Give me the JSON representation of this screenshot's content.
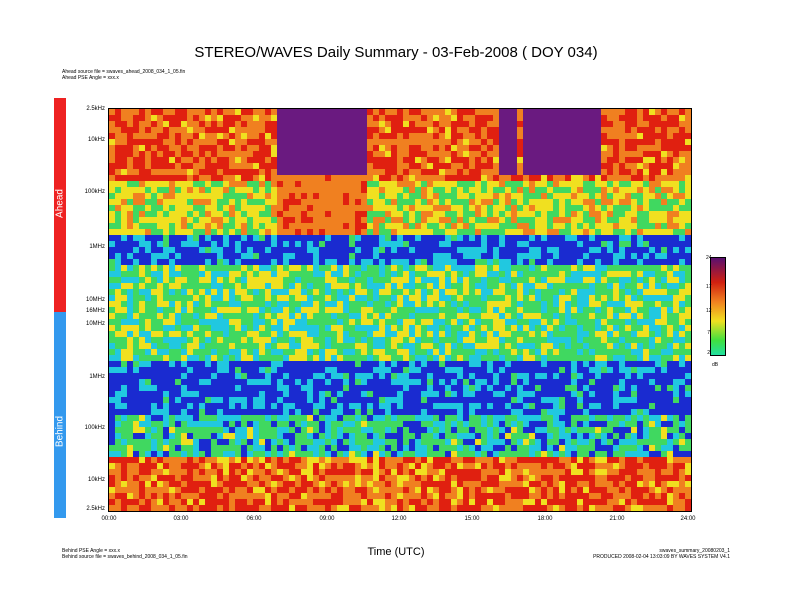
{
  "title": "STEREO/WAVES Daily Summary - 03-Feb-2008 ( DOY 034)",
  "ahead_info": {
    "source_file": "Ahead source file = swaves_ahead_2008_034_1_05.fin",
    "pse_angle": "Ahead PSE Angle = xxx.x"
  },
  "behind_info": {
    "pse_angle": "Behind PSE Angle = xxx.x",
    "source_file": "Behind source file = swaves_behind_2008_034_1_05.fin"
  },
  "footer_right": {
    "line1": "swaves_summary_20080203_1",
    "line2": "PRODUCED 2008-02-04 13:03:09 BY WAVES SYSTEM V4.1"
  },
  "bands": {
    "ahead": "Ahead",
    "behind": "Behind"
  },
  "chart_data": {
    "type": "heatmap",
    "title": "STEREO/WAVES Daily Summary - 03-Feb-2008 ( DOY 034)",
    "xlabel": "Time (UTC)",
    "x_ticks": [
      "00:00",
      "03:00",
      "06:00",
      "09:00",
      "12:00",
      "15:00",
      "18:00",
      "21:00",
      "24:00"
    ],
    "x_range_hours": [
      0,
      24
    ],
    "panels": [
      {
        "name": "Ahead",
        "y_scale": "log",
        "y_ticks": [
          "2.5kHz",
          "10kHz",
          "100kHz",
          "1MHz",
          "10MHz",
          "16MHz"
        ]
      },
      {
        "name": "Behind",
        "y_scale": "log",
        "y_ticks": [
          "10MHz",
          "1MHz",
          "100kHz",
          "10kHz",
          "2.5kHz"
        ]
      }
    ],
    "colorbar": {
      "ticks": [
        24,
        17,
        12,
        7,
        2
      ],
      "unit": "dB",
      "range": [
        2,
        24
      ]
    },
    "colors": {
      "background": "#1a2bd0",
      "low": "#21c8e0",
      "mid": "#f0e020",
      "high": "#e02010",
      "max": "#6a1a80"
    }
  }
}
